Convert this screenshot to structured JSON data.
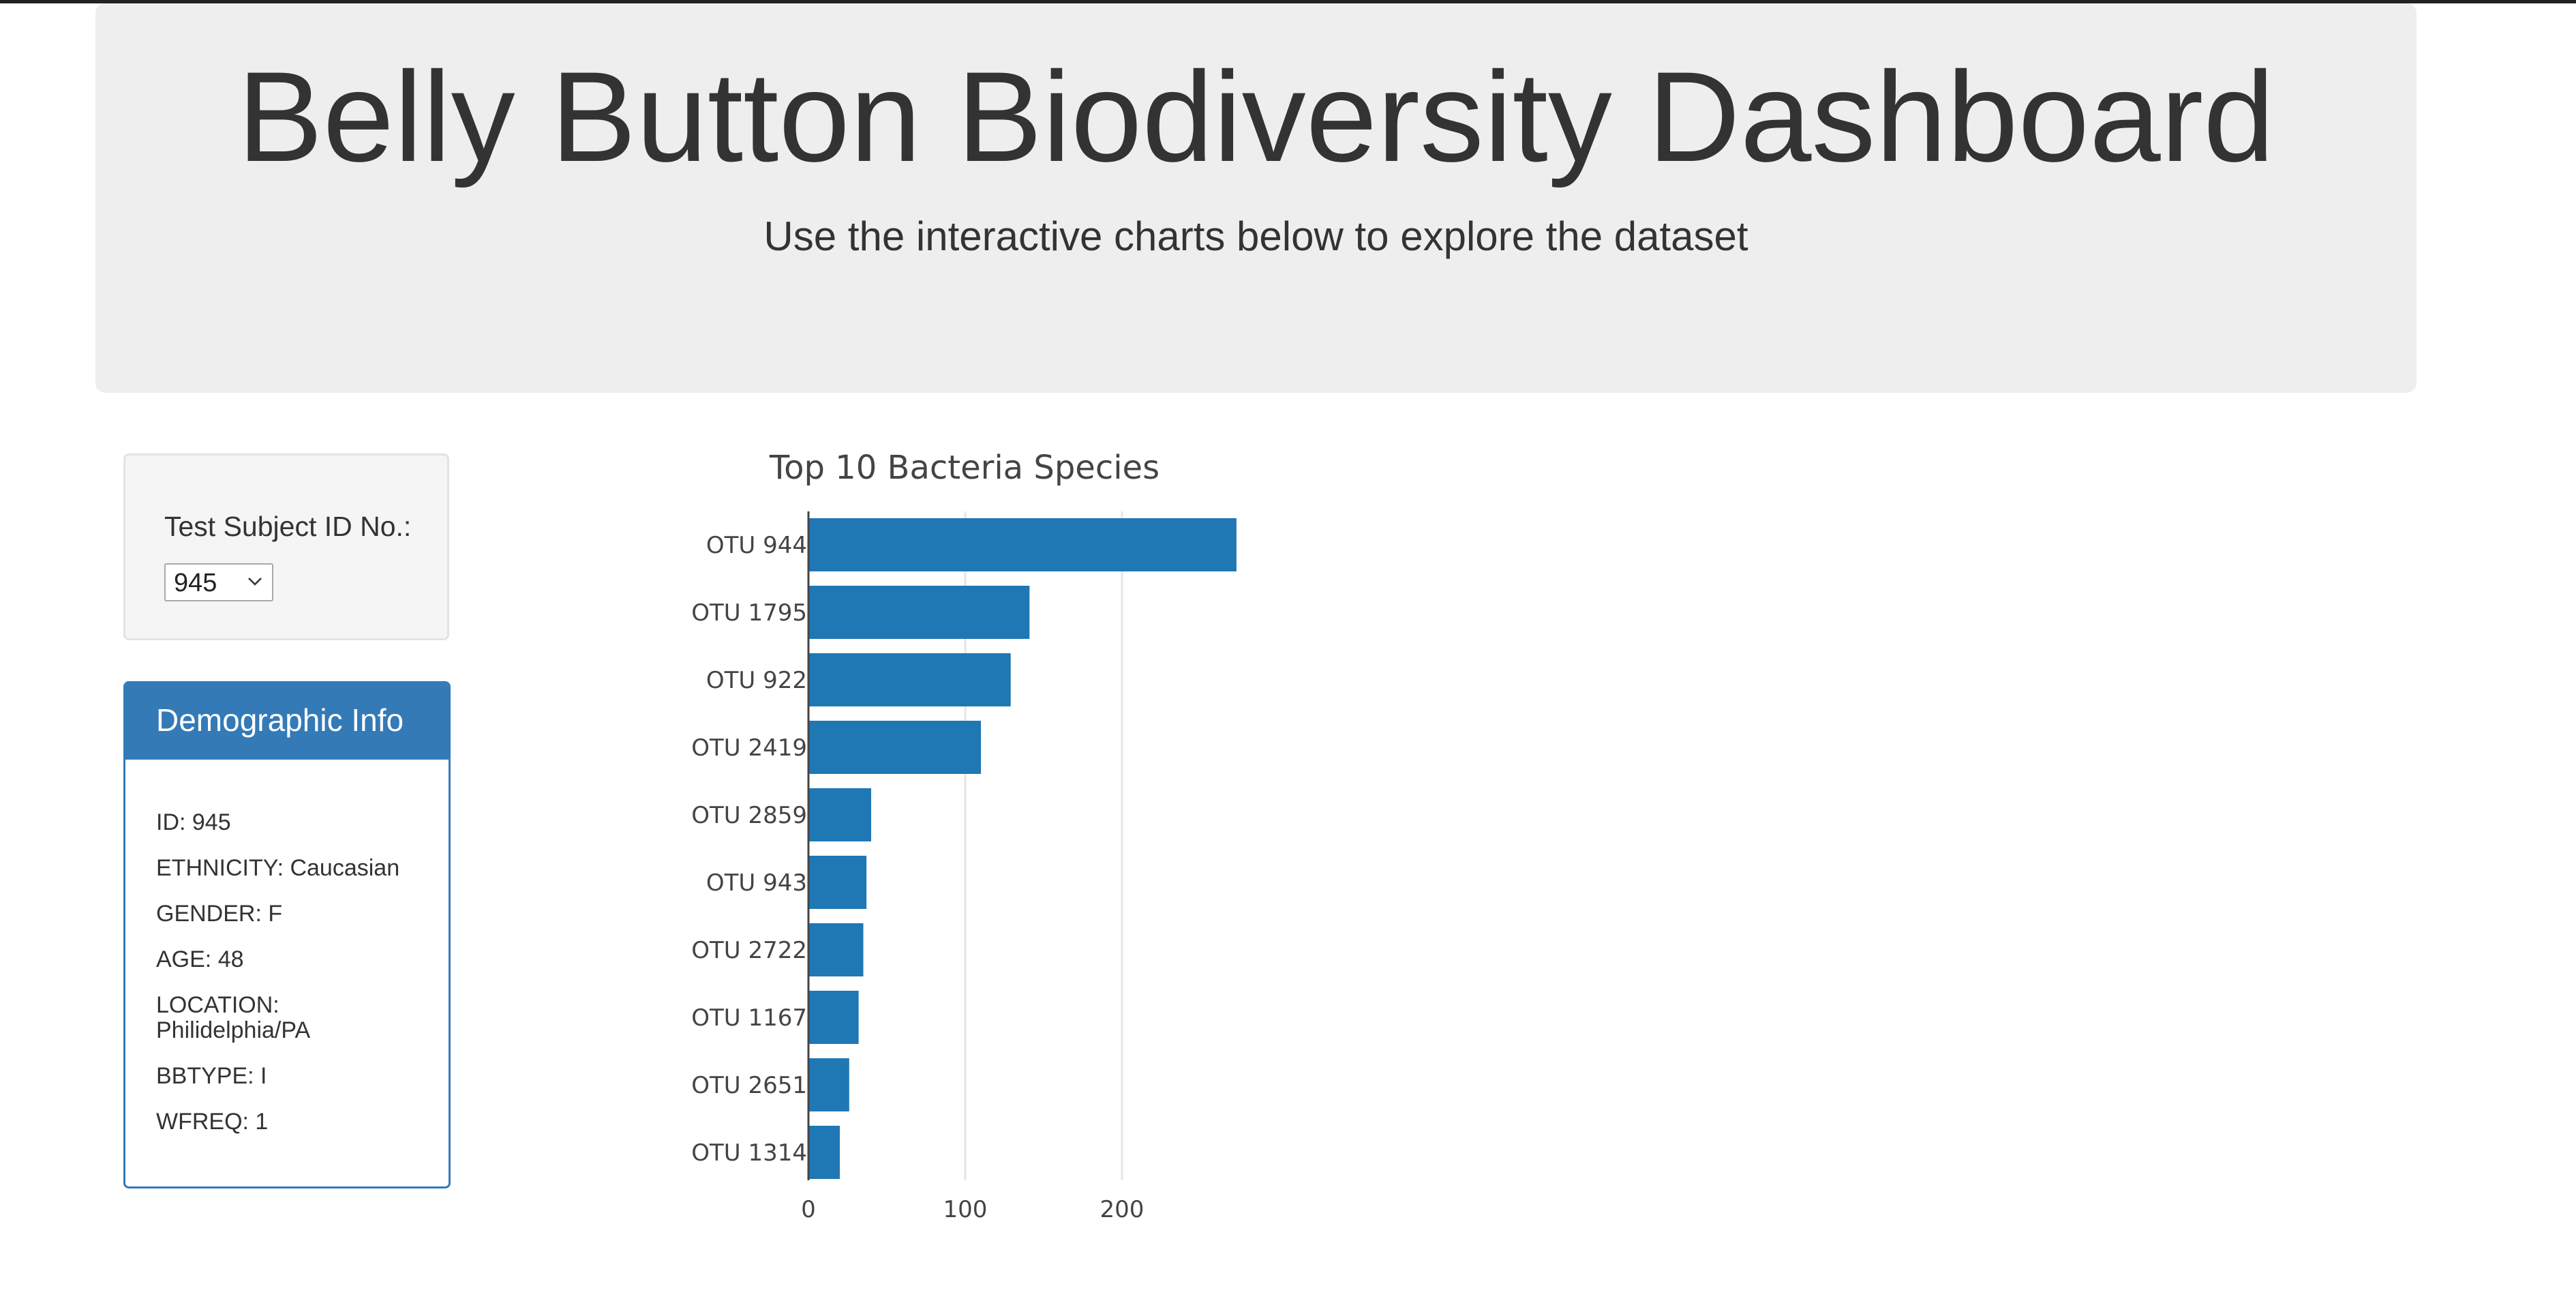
{
  "header": {
    "title": "Belly Button Biodiversity Dashboard",
    "subtitle": "Use the interactive charts below to explore the dataset"
  },
  "selector": {
    "label": "Test Subject ID No.:",
    "selected": "945"
  },
  "demographics": {
    "heading": "Demographic Info",
    "rows": [
      "ID: 945",
      "ETHNICITY: Caucasian",
      "GENDER: F",
      "AGE: 48",
      "LOCATION: Philidelphia/PA",
      "BBTYPE: I",
      "WFREQ: 1"
    ]
  },
  "colors": {
    "bar": "#1f77b4",
    "panel": "#337ab7"
  },
  "chart_data": {
    "type": "bar",
    "orientation": "horizontal",
    "title": "Top 10 Bacteria Species",
    "categories": [
      "OTU 944",
      "OTU 1795",
      "OTU 922",
      "OTU 2419",
      "OTU 2859",
      "OTU 943",
      "OTU 2722",
      "OTU 1167",
      "OTU 2651",
      "OTU 1314"
    ],
    "values": [
      273,
      141,
      129,
      110,
      40,
      37,
      35,
      32,
      26,
      20
    ],
    "xticks": [
      "0",
      "100",
      "200"
    ],
    "xlim": [
      0,
      287
    ],
    "grid": true,
    "xlabel": "",
    "ylabel": ""
  }
}
